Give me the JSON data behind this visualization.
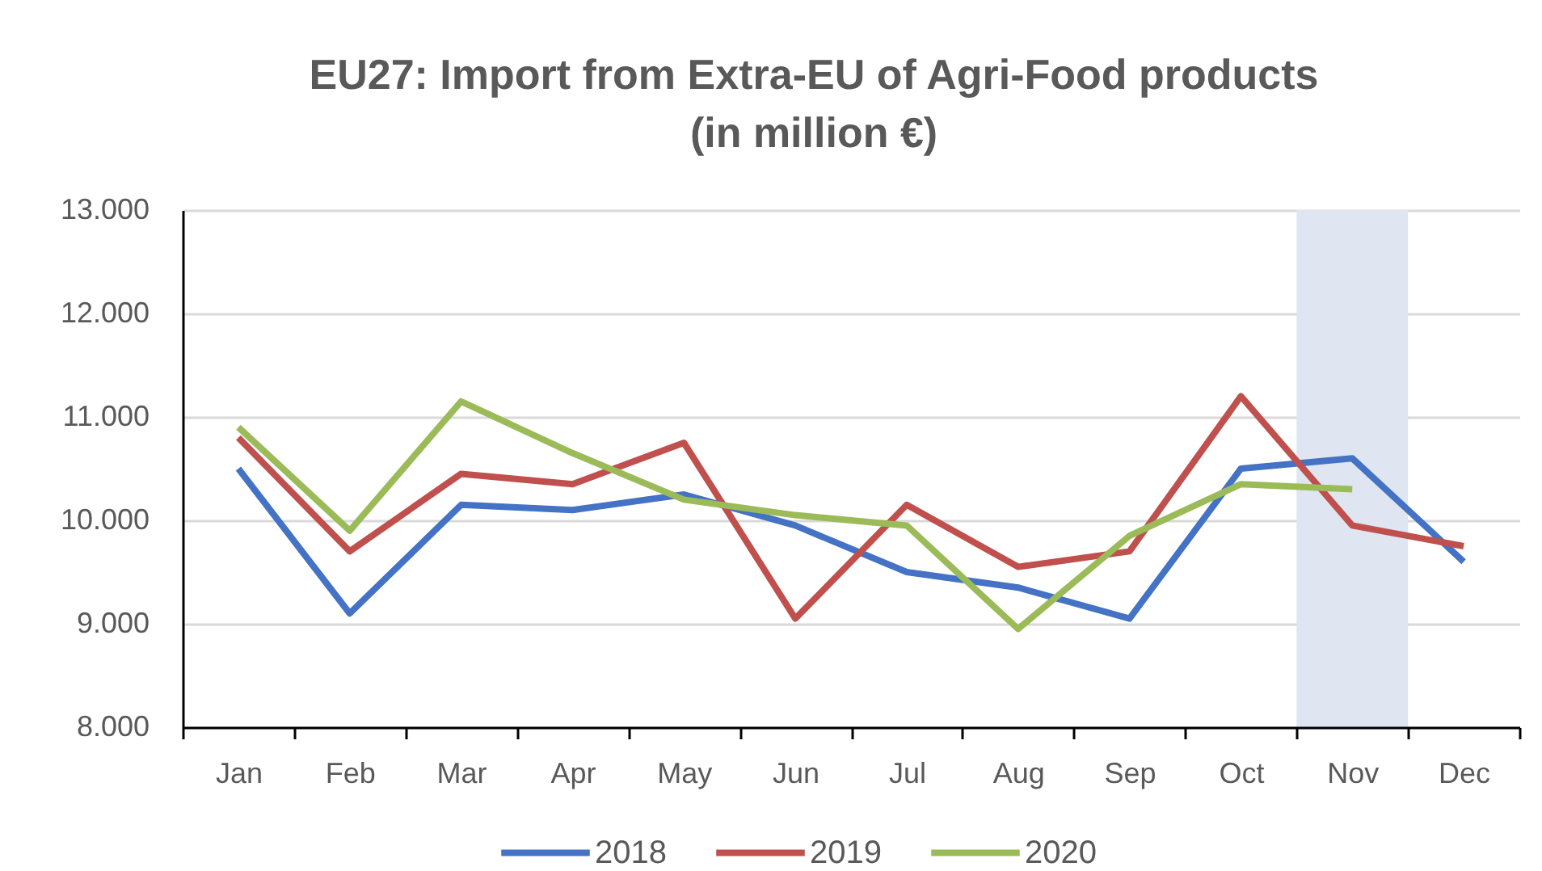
{
  "chart_data": {
    "type": "line",
    "title": "EU27: Import from Extra-EU of Agri-Food products",
    "subtitle": "(in million €)",
    "categories": [
      "Jan",
      "Feb",
      "Mar",
      "Apr",
      "May",
      "Jun",
      "Jul",
      "Aug",
      "Sep",
      "Oct",
      "Nov",
      "Dec"
    ],
    "series": [
      {
        "name": "2018",
        "color": "#4472c4",
        "values": [
          10500,
          9100,
          10150,
          10100,
          10250,
          9950,
          9500,
          9350,
          9050,
          10500,
          10600,
          9600
        ]
      },
      {
        "name": "2019",
        "color": "#c0504d",
        "values": [
          10800,
          9700,
          10450,
          10350,
          10750,
          9050,
          10150,
          9550,
          9700,
          11200,
          9950,
          9750
        ]
      },
      {
        "name": "2020",
        "color": "#9bbb59",
        "values": [
          10900,
          9900,
          11150,
          10650,
          10200,
          10050,
          9950,
          8950,
          9850,
          10350,
          10300,
          null
        ]
      }
    ],
    "ylim": [
      8000,
      13000
    ],
    "yticks": [
      {
        "value": 8000,
        "label": "8.000"
      },
      {
        "value": 9000,
        "label": "9.000"
      },
      {
        "value": 10000,
        "label": "10.000"
      },
      {
        "value": 11000,
        "label": "11.000"
      },
      {
        "value": 12000,
        "label": "12.000"
      },
      {
        "value": 13000,
        "label": "13.000"
      }
    ],
    "bands": [
      {
        "axis": "x",
        "from": "Nov",
        "to": "Nov",
        "color": "#dfe5f1"
      }
    ],
    "grid": "y",
    "legend": "bottom",
    "line_style": "solid"
  }
}
